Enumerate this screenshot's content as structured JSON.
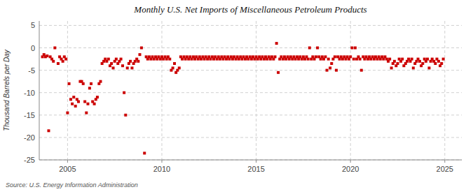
{
  "chart_data": {
    "type": "scatter",
    "title": "Monthly U.S. Net Imports of Miscellaneous Petroleum Products",
    "ylabel": "Thousand Barrels per Day",
    "annotations": [
      "Source: U.S. Energy Information Administration"
    ],
    "color": "#cc0000",
    "marker": "square",
    "grid": true,
    "xlim": [
      2003.5,
      2025.9
    ],
    "ylim": [
      -25,
      6
    ],
    "xticks": [
      2005,
      2010,
      2015,
      2020,
      2025
    ],
    "yticks": [
      5,
      0,
      -5,
      -10,
      -15,
      -20,
      -25
    ],
    "x": [
      2003.67,
      2003.75,
      2003.83,
      2003.92,
      2004.0,
      2004.08,
      2004.17,
      2004.25,
      2004.33,
      2004.5,
      2004.58,
      2004.67,
      2004.75,
      2004.83,
      2004.92,
      2005.0,
      2005.08,
      2005.17,
      2005.25,
      2005.33,
      2005.42,
      2005.5,
      2005.58,
      2005.67,
      2005.75,
      2005.83,
      2005.92,
      2006.0,
      2006.08,
      2006.17,
      2006.25,
      2006.33,
      2006.42,
      2006.5,
      2006.58,
      2006.67,
      2006.75,
      2006.83,
      2006.92,
      2007.0,
      2007.08,
      2007.17,
      2007.25,
      2007.33,
      2007.42,
      2007.5,
      2007.58,
      2007.67,
      2007.75,
      2007.83,
      2007.92,
      2008.0,
      2008.08,
      2008.17,
      2008.25,
      2008.33,
      2008.42,
      2008.5,
      2008.58,
      2008.67,
      2008.75,
      2008.83,
      2008.92,
      2009.08,
      2009.17,
      2009.25,
      2009.33,
      2009.42,
      2009.5,
      2009.58,
      2009.67,
      2009.75,
      2009.83,
      2009.92,
      2010.0,
      2010.08,
      2010.17,
      2010.25,
      2010.33,
      2010.42,
      2010.5,
      2010.58,
      2010.67,
      2010.75,
      2010.83,
      2010.92,
      2011.0,
      2011.08,
      2011.17,
      2011.25,
      2011.33,
      2011.42,
      2011.5,
      2011.58,
      2011.67,
      2011.75,
      2011.83,
      2011.92,
      2012.0,
      2012.08,
      2012.17,
      2012.25,
      2012.33,
      2012.42,
      2012.5,
      2012.58,
      2012.67,
      2012.75,
      2012.83,
      2012.92,
      2013.0,
      2013.08,
      2013.17,
      2013.25,
      2013.33,
      2013.42,
      2013.5,
      2013.58,
      2013.67,
      2013.75,
      2013.83,
      2013.92,
      2014.0,
      2014.08,
      2014.17,
      2014.25,
      2014.33,
      2014.42,
      2014.5,
      2014.58,
      2014.67,
      2014.75,
      2014.83,
      2014.92,
      2015.0,
      2015.08,
      2015.17,
      2015.25,
      2015.33,
      2015.42,
      2015.5,
      2015.58,
      2015.67,
      2015.75,
      2015.83,
      2015.92,
      2016.0,
      2016.08,
      2016.17,
      2016.25,
      2016.33,
      2016.42,
      2016.5,
      2016.58,
      2016.67,
      2016.75,
      2016.83,
      2016.92,
      2017.0,
      2017.08,
      2017.17,
      2017.25,
      2017.33,
      2017.42,
      2017.5,
      2017.58,
      2017.67,
      2017.75,
      2017.83,
      2017.92,
      2018.0,
      2018.08,
      2018.17,
      2018.25,
      2018.33,
      2018.42,
      2018.5,
      2018.58,
      2018.67,
      2018.75,
      2018.83,
      2018.92,
      2019.0,
      2019.08,
      2019.17,
      2019.25,
      2019.33,
      2019.42,
      2019.5,
      2019.58,
      2019.67,
      2019.75,
      2019.83,
      2019.92,
      2020.0,
      2020.08,
      2020.17,
      2020.25,
      2020.33,
      2020.42,
      2020.5,
      2020.58,
      2020.67,
      2020.75,
      2020.83,
      2020.92,
      2021.0,
      2021.08,
      2021.17,
      2021.25,
      2021.33,
      2021.42,
      2021.5,
      2021.58,
      2021.67,
      2021.75,
      2021.83,
      2021.92,
      2022.0,
      2022.08,
      2022.17,
      2022.25,
      2022.33,
      2022.42,
      2022.5,
      2022.58,
      2022.67,
      2022.75,
      2022.83,
      2022.92,
      2023.0,
      2023.08,
      2023.17,
      2023.25,
      2023.33,
      2023.42,
      2023.5,
      2023.58,
      2023.67,
      2023.75,
      2023.83,
      2023.92,
      2024.0,
      2024.08,
      2024.17,
      2024.25,
      2024.33,
      2024.42,
      2024.5,
      2024.58,
      2024.67,
      2024.75,
      2024.83,
      2024.92
    ],
    "values": [
      -2.0,
      -1.5,
      -2.0,
      -1.8,
      -18.5,
      -2.0,
      -2.5,
      -3.0,
      0.0,
      -3.5,
      -2.0,
      -2.5,
      -3.0,
      -2.0,
      -2.5,
      -14.5,
      -8.0,
      -11.5,
      -12.5,
      -11.0,
      -13.0,
      -11.5,
      -12.0,
      -7.5,
      -7.5,
      -8.0,
      -12.0,
      -14.5,
      -12.5,
      -9.0,
      -8.0,
      -12.0,
      -12.5,
      -11.5,
      -11.0,
      -8.0,
      -7.5,
      -3.5,
      -3.0,
      -2.5,
      -3.0,
      -2.5,
      -4.0,
      -3.5,
      -4.5,
      -3.0,
      -2.5,
      -3.5,
      -3.0,
      -2.5,
      -4.0,
      -10.0,
      -15.0,
      -4.5,
      -3.5,
      -3.0,
      -4.5,
      -3.5,
      -3.0,
      -2.5,
      -3.0,
      -1.5,
      0.0,
      -23.5,
      -2.0,
      -2.5,
      -2.0,
      -2.5,
      -2.0,
      -2.5,
      -2.0,
      -2.5,
      -2.0,
      -2.5,
      -2.0,
      -2.5,
      -2.0,
      -2.5,
      -2.0,
      -2.5,
      -5.0,
      -4.5,
      -3.5,
      -5.5,
      -5.0,
      -4.5,
      -2.0,
      -2.5,
      -2.0,
      -2.5,
      -2.0,
      -2.5,
      -2.0,
      -2.5,
      -2.0,
      -2.5,
      -2.0,
      -2.5,
      -2.0,
      -2.5,
      -2.0,
      -2.5,
      -2.0,
      -2.5,
      -2.0,
      -2.5,
      -2.0,
      -2.5,
      -2.0,
      -2.5,
      -2.0,
      -2.5,
      -2.0,
      -2.5,
      -2.0,
      -2.5,
      -2.0,
      -2.5,
      -2.0,
      -2.5,
      -2.0,
      -2.5,
      -2.0,
      -2.5,
      -2.0,
      -2.5,
      -2.0,
      -2.5,
      -2.0,
      -2.5,
      -2.0,
      -2.5,
      -2.0,
      -2.5,
      -2.0,
      -2.5,
      -2.0,
      -2.5,
      -2.0,
      -2.5,
      -2.0,
      -2.5,
      -2.0,
      -2.5,
      -2.0,
      -2.5,
      -2.0,
      1.0,
      -5.5,
      -2.5,
      -2.0,
      -2.5,
      -2.0,
      -2.5,
      -2.0,
      -2.5,
      -2.0,
      -2.5,
      -2.0,
      -2.5,
      -2.0,
      -2.5,
      -2.0,
      -2.5,
      -2.0,
      -2.5,
      -2.0,
      -2.5,
      0.0,
      -2.5,
      -2.0,
      -2.5,
      -2.0,
      0.0,
      -2.0,
      -2.5,
      -2.0,
      -2.5,
      -2.0,
      -5.0,
      -2.5,
      -4.5,
      -3.5,
      -2.5,
      -2.0,
      -5.0,
      -2.0,
      -2.5,
      -2.0,
      -2.5,
      -2.0,
      -2.5,
      -2.0,
      -2.5,
      -2.0,
      0.0,
      -2.5,
      0.0,
      -2.5,
      -2.0,
      -2.5,
      -5.0,
      -2.0,
      -2.5,
      -2.0,
      -2.5,
      -2.0,
      -2.5,
      -2.0,
      -2.5,
      -2.0,
      -2.5,
      -2.0,
      -2.5,
      -2.0,
      -2.5,
      -2.0,
      -2.5,
      -3.0,
      -2.5,
      -4.5,
      -3.5,
      -3.0,
      -4.0,
      -3.5,
      -2.5,
      -3.0,
      -2.5,
      -4.0,
      -3.5,
      -3.0,
      -2.5,
      -3.0,
      -2.5,
      -4.5,
      -3.5,
      -3.0,
      -2.5,
      -3.0,
      -4.0,
      -3.5,
      -2.5,
      -3.0,
      -2.5,
      -4.5,
      -3.0,
      -2.5,
      -3.0,
      -3.5,
      -2.5,
      -3.0,
      -4.0,
      -3.5,
      -2.5
    ]
  }
}
